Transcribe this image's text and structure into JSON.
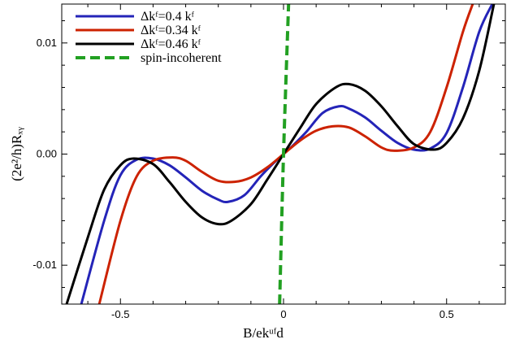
{
  "chart_data": {
    "type": "line",
    "xlabel": "B/ekᵘᶠd",
    "ylabel": "(2e²/h)Rₓᵧ",
    "xlim": [
      -0.68,
      0.68
    ],
    "ylim": [
      -0.0135,
      0.0135
    ],
    "x_ticks": [
      -0.5,
      0,
      0.5
    ],
    "x_tick_labels": [
      "-0.5",
      "0",
      "0.5"
    ],
    "y_ticks": [
      -0.01,
      0,
      0.01
    ],
    "y_tick_labels": [
      "-0.01",
      "0.00",
      "0.01"
    ],
    "grid": false,
    "legend_position": "top-left",
    "series": [
      {
        "name": "Δkᶠ=0.4 kᶠ",
        "color": "#2424b8",
        "dash": "solid",
        "x": [
          -0.62,
          -0.55,
          -0.5,
          -0.45,
          -0.4,
          -0.35,
          -0.3,
          -0.25,
          -0.2,
          -0.17,
          -0.12,
          -0.07,
          -0.03,
          0.0,
          0.03,
          0.07,
          0.12,
          0.17,
          0.2,
          0.25,
          0.3,
          0.35,
          0.4,
          0.45,
          0.5,
          0.55,
          0.6,
          0.64
        ],
        "y": [
          -0.0135,
          -0.006,
          -0.0019,
          -0.0005,
          -0.0004,
          -0.001,
          -0.0021,
          -0.0033,
          -0.0041,
          -0.0043,
          -0.0037,
          -0.002,
          -0.0008,
          0.0,
          0.0008,
          0.002,
          0.0037,
          0.0043,
          0.0041,
          0.0033,
          0.0021,
          0.001,
          0.0004,
          0.0005,
          0.0019,
          0.006,
          0.011,
          0.0135
        ]
      },
      {
        "name": "Δkᶠ=0.34 kᶠ",
        "color": "#cc2200",
        "dash": "solid",
        "x": [
          -0.565,
          -0.5,
          -0.45,
          -0.4,
          -0.34,
          -0.3,
          -0.25,
          -0.2,
          -0.15,
          -0.1,
          -0.05,
          0.0,
          0.05,
          0.1,
          0.15,
          0.2,
          0.25,
          0.3,
          0.34,
          0.4,
          0.45,
          0.5,
          0.55,
          0.58
        ],
        "y": [
          -0.0135,
          -0.006,
          -0.002,
          -0.0006,
          -0.0003,
          -0.0006,
          -0.0016,
          -0.0024,
          -0.0025,
          -0.0021,
          -0.0012,
          0.0,
          0.0012,
          0.0021,
          0.0025,
          0.0024,
          0.0016,
          0.0006,
          0.0003,
          0.0006,
          0.002,
          0.006,
          0.011,
          0.0135
        ]
      },
      {
        "name": "Δkᶠ=0.46 kᶠ",
        "color": "#000000",
        "dash": "solid",
        "x": [
          -0.665,
          -0.6,
          -0.55,
          -0.5,
          -0.46,
          -0.4,
          -0.35,
          -0.3,
          -0.25,
          -0.2,
          -0.16,
          -0.1,
          -0.05,
          0.0,
          0.05,
          0.1,
          0.16,
          0.2,
          0.25,
          0.3,
          0.35,
          0.4,
          0.46,
          0.5,
          0.55,
          0.6,
          0.645
        ],
        "y": [
          -0.0135,
          -0.0075,
          -0.0032,
          -0.001,
          -0.0004,
          -0.0009,
          -0.0025,
          -0.0043,
          -0.0057,
          -0.0063,
          -0.006,
          -0.0045,
          -0.0023,
          0.0,
          0.0023,
          0.0045,
          0.006,
          0.0063,
          0.0057,
          0.0043,
          0.0025,
          0.0009,
          0.0004,
          0.001,
          0.0032,
          0.0075,
          0.0135
        ]
      },
      {
        "name": "spin-incoherent",
        "color": "#22a022",
        "dash": "dashed",
        "x": [
          -0.012,
          0.0,
          0.0155
        ],
        "y": [
          -0.0135,
          0.0,
          0.0135
        ]
      }
    ]
  }
}
